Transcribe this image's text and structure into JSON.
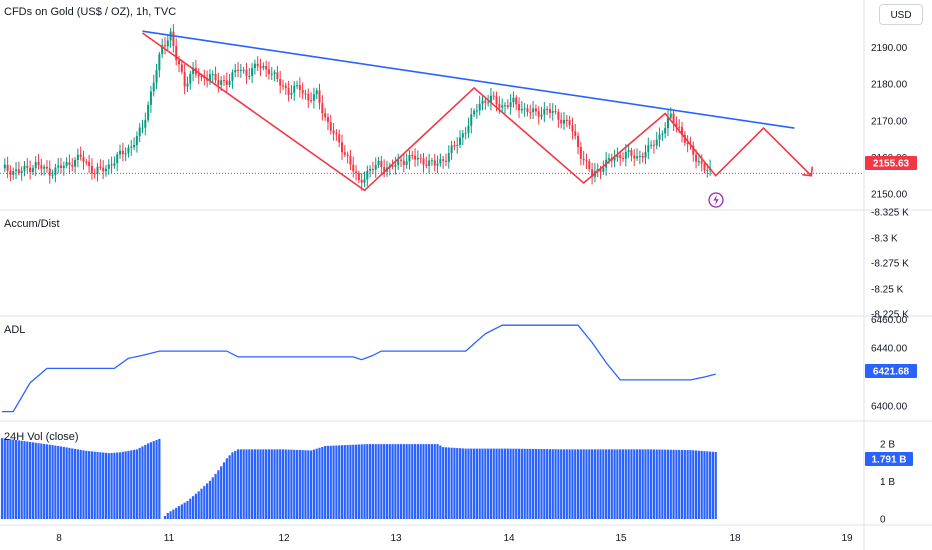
{
  "header": {
    "currency_button": "USD"
  },
  "chart_data": [
    {
      "type": "candlestick",
      "title": "CFDs on Gold (US$ / OZ), 1h, TVC",
      "ylim": [
        2147,
        2197
      ],
      "y_ticks": [
        "2190.00",
        "2180.00",
        "2170.00",
        "2160.00",
        "2150.00"
      ],
      "last_price_label": "2155.63",
      "last_price_value": 2155.63,
      "x_ticks": [
        "8",
        "11",
        "12",
        "13",
        "14",
        "15",
        "18",
        "19"
      ],
      "close_path": [
        [
          0,
          2157
        ],
        [
          6,
          2156
        ],
        [
          12,
          2158
        ],
        [
          17,
          2156
        ],
        [
          23,
          2158
        ],
        [
          28,
          2160
        ],
        [
          33,
          2156
        ],
        [
          37,
          2157
        ],
        [
          41,
          2160
        ],
        [
          46,
          2163
        ],
        [
          50,
          2168
        ],
        [
          54,
          2181
        ],
        [
          57,
          2190
        ],
        [
          60,
          2194
        ],
        [
          62,
          2187
        ],
        [
          65,
          2180
        ],
        [
          68,
          2184
        ],
        [
          71,
          2181
        ],
        [
          74,
          2183
        ],
        [
          77,
          2180
        ],
        [
          80,
          2181
        ],
        [
          84,
          2184
        ],
        [
          87,
          2183
        ],
        [
          91,
          2185
        ],
        [
          95,
          2184
        ],
        [
          98,
          2181
        ],
        [
          102,
          2178
        ],
        [
          106,
          2179
        ],
        [
          109,
          2176
        ],
        [
          112,
          2177
        ],
        [
          115,
          2171
        ],
        [
          119,
          2165
        ],
        [
          123,
          2160
        ],
        [
          127,
          2153
        ],
        [
          130,
          2156
        ],
        [
          134,
          2158
        ],
        [
          138,
          2157
        ],
        [
          142,
          2159
        ],
        [
          146,
          2160
        ],
        [
          150,
          2159
        ],
        [
          154,
          2158
        ],
        [
          158,
          2160
        ],
        [
          162,
          2164
        ],
        [
          166,
          2169
        ],
        [
          170,
          2175
        ],
        [
          174,
          2176
        ],
        [
          178,
          2174
        ],
        [
          182,
          2175
        ],
        [
          186,
          2173
        ],
        [
          190,
          2172
        ],
        [
          194,
          2173
        ],
        [
          198,
          2171
        ],
        [
          202,
          2169
        ],
        [
          206,
          2161
        ],
        [
          210,
          2155
        ],
        [
          214,
          2158
        ],
        [
          218,
          2160
        ],
        [
          222,
          2161
        ],
        [
          226,
          2160
        ],
        [
          230,
          2162
        ],
        [
          234,
          2166
        ],
        [
          238,
          2171
        ],
        [
          241,
          2168
        ],
        [
          244,
          2163
        ],
        [
          247,
          2160
        ],
        [
          250,
          2157
        ],
        [
          252,
          2156
        ]
      ],
      "pattern_lines": [
        {
          "name": "trendline",
          "color": "#2962ff",
          "points": [
            [
              50,
              2194.5
            ],
            [
              282,
              2168
            ]
          ]
        },
        {
          "name": "zigzag",
          "color": "#f23645",
          "points": [
            [
              50,
              2194
            ],
            [
              129,
              2151
            ],
            [
              168,
              2179
            ],
            [
              207,
              2153
            ],
            [
              236,
              2172
            ],
            [
              254,
              2155
            ],
            [
              271,
              2168
            ],
            [
              288,
              2155
            ]
          ]
        }
      ]
    },
    {
      "type": "line",
      "title": "Accum/Dist",
      "y_ticks": [
        "-8.325 K",
        "-8.3 K",
        "-8.275 K",
        "-8.25 K",
        "-8.225 K"
      ]
    },
    {
      "type": "line",
      "title": "ADL",
      "ylim": [
        6395,
        6461
      ],
      "y_ticks": [
        "6460.00",
        "6440.00",
        "6400.00"
      ],
      "last_value_label": "6421.68",
      "last_value": 6421.68,
      "series": [
        {
          "x": [
            0,
            4,
            10,
            16,
            22,
            30,
            40,
            45,
            50,
            56,
            60,
            70,
            80,
            84,
            90,
            100,
            110,
            125,
            128,
            132,
            135,
            140,
            150,
            165,
            172,
            178,
            190,
            205,
            210,
            215,
            220,
            240,
            245,
            250,
            254
          ],
          "y": [
            6396,
            6396,
            6416,
            6426,
            6426,
            6426,
            6426,
            6433,
            6435,
            6438,
            6438,
            6438,
            6438,
            6434,
            6434,
            6434,
            6434,
            6434,
            6432,
            6435,
            6438,
            6438,
            6438,
            6438,
            6450,
            6456,
            6456,
            6456,
            6444,
            6430,
            6418,
            6418,
            6418,
            6420,
            6422
          ]
        }
      ]
    },
    {
      "type": "bar",
      "title": "24H Vol (close)",
      "ylim": [
        0,
        2.35
      ],
      "y_ticks": [
        "2 B",
        "1 B",
        "0"
      ],
      "last_value_label": "1.791 B",
      "last_value": 1.791,
      "profile": [
        [
          0,
          2.16
        ],
        [
          8,
          2.08
        ],
        [
          20,
          1.95
        ],
        [
          30,
          1.82
        ],
        [
          38,
          1.76
        ],
        [
          42,
          1.78
        ],
        [
          48,
          1.86
        ],
        [
          52,
          2.02
        ],
        [
          56,
          2.14
        ],
        [
          57,
          0
        ],
        [
          59,
          0.16
        ],
        [
          62,
          0.3
        ],
        [
          66,
          0.48
        ],
        [
          70,
          0.74
        ],
        [
          74,
          1.02
        ],
        [
          77,
          1.3
        ],
        [
          80,
          1.62
        ],
        [
          82,
          1.78
        ],
        [
          84,
          1.86
        ],
        [
          100,
          1.86
        ],
        [
          110,
          1.83
        ],
        [
          115,
          1.95
        ],
        [
          130,
          2.0
        ],
        [
          145,
          2.0
        ],
        [
          155,
          2.0
        ],
        [
          157,
          1.92
        ],
        [
          165,
          1.88
        ],
        [
          180,
          1.88
        ],
        [
          200,
          1.86
        ],
        [
          230,
          1.86
        ],
        [
          245,
          1.84
        ],
        [
          254,
          1.79
        ]
      ]
    }
  ]
}
